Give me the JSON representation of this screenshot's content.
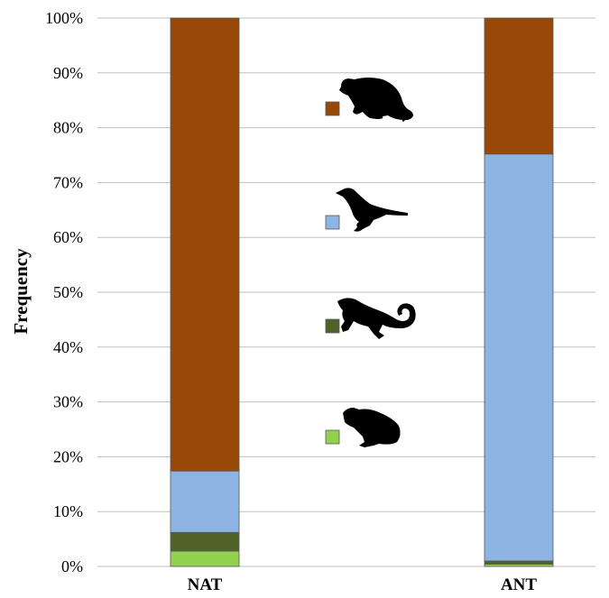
{
  "chart_data": {
    "type": "bar",
    "stacked": true,
    "categories": [
      "NAT",
      "ANT"
    ],
    "series": [
      {
        "icon": "frog-icon",
        "color": "#92d050",
        "values": [
          2.8,
          0.4
        ]
      },
      {
        "icon": "lizard-icon",
        "color": "#4f6228",
        "values": [
          3.4,
          0.6
        ]
      },
      {
        "icon": "bird-icon",
        "color": "#8eb4e3",
        "values": [
          11.2,
          74.2
        ]
      },
      {
        "icon": "rodent-icon",
        "color": "#984807",
        "values": [
          82.6,
          24.8
        ]
      }
    ],
    "ylabel": "Frequency",
    "ylim": [
      0,
      100
    ],
    "yticks": [
      "0%",
      "10%",
      "20%",
      "30%",
      "40%",
      "50%",
      "60%",
      "70%",
      "80%",
      "90%",
      "100%"
    ],
    "grid": true,
    "legend": "center, icon legend between bars"
  }
}
